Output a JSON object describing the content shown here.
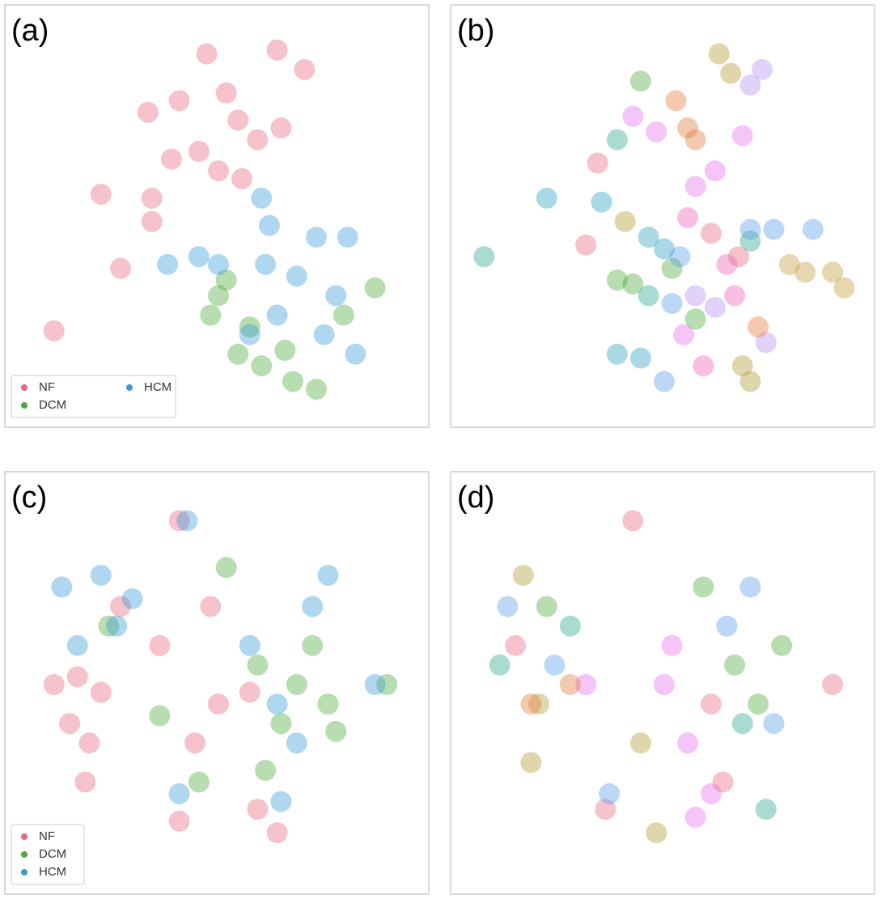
{
  "chart_data": [
    {
      "type": "scatter",
      "title": "(a)",
      "xlim": [
        0,
        100
      ],
      "ylim": [
        100,
        0
      ],
      "legend": "lower left",
      "legend_columns": 2,
      "series": [
        {
          "name": "NF",
          "color": "#e8677f",
          "x": [
            47,
            65,
            72,
            40,
            52,
            32,
            45,
            60,
            66,
            20,
            33,
            33,
            25,
            8,
            50,
            56,
            38,
            55
          ],
          "y": [
            8,
            7,
            12,
            20,
            18,
            23,
            33,
            30,
            27,
            44,
            45,
            51,
            63,
            79,
            38,
            40,
            35,
            25
          ]
        },
        {
          "name": "DCM",
          "color": "#4aa93a",
          "x": [
            50,
            48,
            55,
            61,
            69,
            75,
            90,
            82,
            52,
            67,
            58
          ],
          "y": [
            70,
            75,
            85,
            88,
            92,
            94,
            68,
            75,
            66,
            84,
            78
          ]
        },
        {
          "name": "HCM",
          "color": "#3a9ad9",
          "x": [
            61,
            63,
            75,
            83,
            37,
            50,
            62,
            70,
            80,
            85,
            65,
            77,
            58,
            45
          ],
          "y": [
            45,
            52,
            55,
            55,
            62,
            62,
            62,
            65,
            70,
            85,
            75,
            80,
            80,
            60
          ]
        }
      ]
    },
    {
      "type": "scatter",
      "title": "(b)",
      "xlim": [
        0,
        100
      ],
      "ylim": [
        100,
        0
      ],
      "series": [
        {
          "color": "#b09a2e",
          "x": [
            64,
            67,
            40,
            70,
            72
          ],
          "y": [
            8,
            13,
            51,
            88,
            92
          ]
        },
        {
          "color": "#c49a3a",
          "x": [
            82,
            86,
            93,
            96
          ],
          "y": [
            62,
            64,
            64,
            68
          ]
        },
        {
          "color": "#b58ef0",
          "x": [
            75,
            72,
            58,
            76,
            63
          ],
          "y": [
            12,
            16,
            70,
            82,
            73
          ]
        },
        {
          "color": "#4aa93a",
          "x": [
            44,
            42,
            52,
            38,
            58
          ],
          "y": [
            15,
            67,
            63,
            66,
            76
          ]
        },
        {
          "color": "#e07b39",
          "x": [
            53,
            56,
            74,
            58
          ],
          "y": [
            20,
            27,
            78,
            30
          ]
        },
        {
          "color": "#e46de8",
          "x": [
            42,
            48,
            70,
            63,
            58,
            55
          ],
          "y": [
            24,
            28,
            29,
            38,
            42,
            80
          ]
        },
        {
          "color": "#2ba58f",
          "x": [
            38,
            4,
            72,
            46
          ],
          "y": [
            30,
            60,
            56,
            70
          ]
        },
        {
          "color": "#e8677f",
          "x": [
            33,
            30,
            62,
            69
          ],
          "y": [
            36,
            57,
            54,
            60
          ]
        },
        {
          "color": "#2a9fc0",
          "x": [
            20,
            34,
            46,
            50,
            44,
            38
          ],
          "y": [
            45,
            46,
            55,
            58,
            86,
            85
          ]
        },
        {
          "color": "#5b9ee8",
          "x": [
            78,
            72,
            88,
            54,
            52,
            50
          ],
          "y": [
            53,
            53,
            53,
            60,
            72,
            92
          ]
        },
        {
          "color": "#ec5fb5",
          "x": [
            66,
            68,
            60,
            56
          ],
          "y": [
            62,
            70,
            88,
            50
          ]
        }
      ]
    },
    {
      "type": "scatter",
      "title": "(c)",
      "xlim": [
        0,
        100
      ],
      "ylim": [
        100,
        0
      ],
      "legend": "lower left",
      "legend_columns": 1,
      "series": [
        {
          "name": "NF",
          "color": "#e8677f",
          "x": [
            8,
            14,
            20,
            12,
            17,
            16,
            40,
            48,
            50,
            44,
            40,
            60,
            65,
            58,
            35,
            25
          ],
          "y": [
            50,
            48,
            52,
            60,
            65,
            75,
            8,
            30,
            55,
            65,
            85,
            82,
            88,
            52,
            40,
            30
          ]
        },
        {
          "name": "DCM",
          "color": "#4aa93a",
          "x": [
            22,
            60,
            70,
            78,
            74,
            66,
            80,
            93,
            52,
            35,
            45,
            62
          ],
          "y": [
            35,
            45,
            50,
            55,
            40,
            60,
            62,
            50,
            20,
            58,
            75,
            72
          ]
        },
        {
          "name": "HCM",
          "color": "#3a9ad9",
          "x": [
            10,
            20,
            28,
            14,
            58,
            65,
            74,
            78,
            70,
            42,
            40,
            66,
            90,
            24
          ],
          "y": [
            25,
            22,
            28,
            40,
            40,
            55,
            30,
            22,
            65,
            8,
            78,
            80,
            50,
            35
          ]
        }
      ]
    },
    {
      "type": "scatter",
      "title": "(d)",
      "xlim": [
        0,
        100
      ],
      "ylim": [
        100,
        0
      ],
      "series": [
        {
          "color": "#e8677f",
          "x": [
            12,
            42,
            62,
            65,
            35,
            93
          ],
          "y": [
            40,
            8,
            55,
            75,
            82,
            50
          ]
        },
        {
          "color": "#b09a2e",
          "x": [
            14,
            18,
            16,
            44,
            48
          ],
          "y": [
            22,
            55,
            70,
            65,
            88
          ]
        },
        {
          "color": "#4aa93a",
          "x": [
            20,
            68,
            74,
            80,
            60
          ],
          "y": [
            30,
            45,
            55,
            40,
            25
          ]
        },
        {
          "color": "#2ba58f",
          "x": [
            8,
            26,
            70,
            76
          ],
          "y": [
            45,
            35,
            60,
            82
          ]
        },
        {
          "color": "#5b9ee8",
          "x": [
            10,
            22,
            66,
            78,
            72,
            36
          ],
          "y": [
            30,
            45,
            35,
            60,
            25,
            78
          ]
        },
        {
          "color": "#e46de8",
          "x": [
            30,
            50,
            52,
            56,
            62,
            58
          ],
          "y": [
            50,
            50,
            40,
            65,
            78,
            84
          ]
        },
        {
          "color": "#e07b39",
          "x": [
            16,
            26
          ],
          "y": [
            55,
            50
          ]
        }
      ]
    }
  ]
}
